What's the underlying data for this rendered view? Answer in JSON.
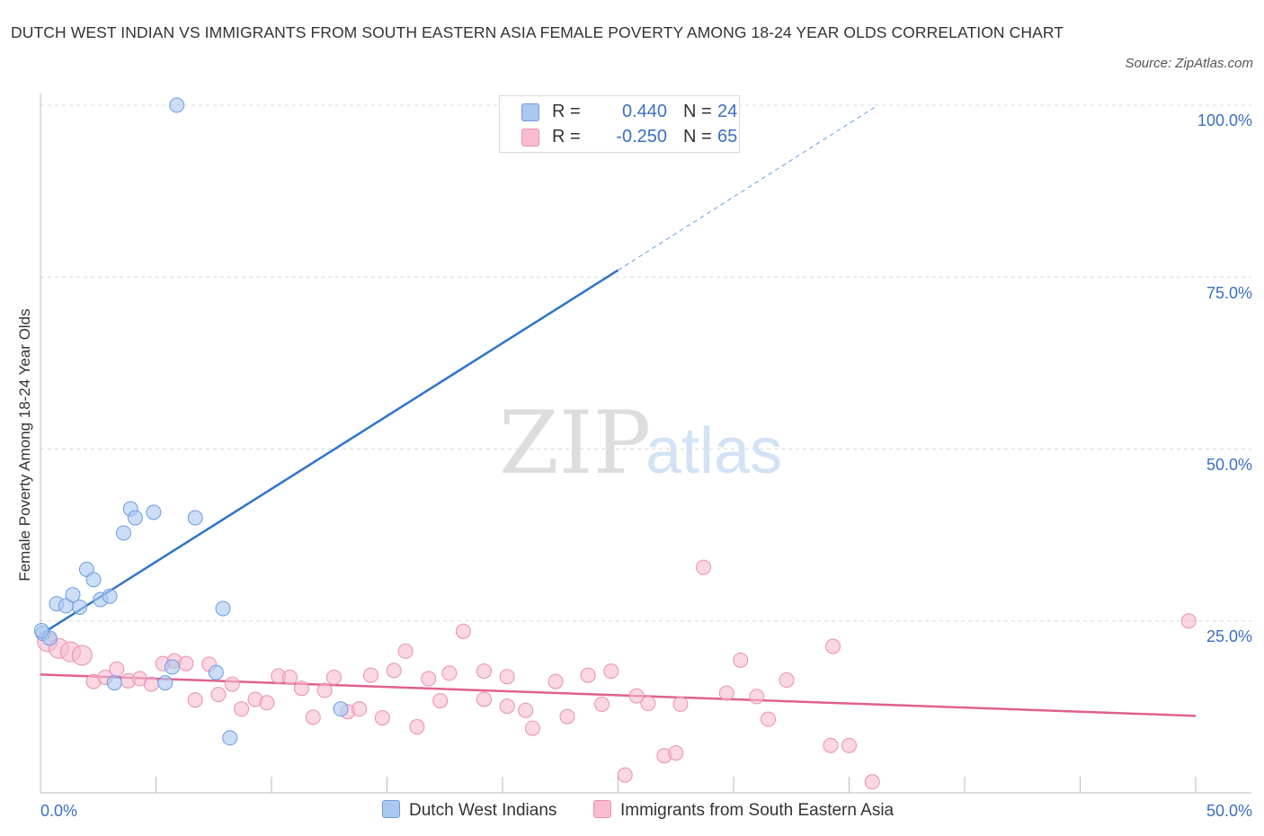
{
  "title": "DUTCH WEST INDIAN VS IMMIGRANTS FROM SOUTH EASTERN ASIA FEMALE POVERTY AMONG 18-24 YEAR OLDS CORRELATION CHART",
  "source": "Source: ZipAtlas.com",
  "watermark": {
    "zip": "ZIP",
    "atlas": "atlas"
  },
  "legend": {
    "rows": [
      {
        "r_label": "R =",
        "r_value": "0.440",
        "n_label": "N =",
        "n_value": "24",
        "color": "#aac8f0"
      },
      {
        "r_label": "R =",
        "r_value": "-0.250",
        "n_label": "N =",
        "n_value": "65",
        "color": "#f7bcd0"
      }
    ]
  },
  "bottom_legend": [
    "Dutch West Indians",
    "Immigrants from South Eastern Asia"
  ],
  "colors": {
    "blue_fill": "#aac8f0",
    "blue_stroke": "#6c9de0",
    "blue_line": "#2f74cc",
    "pink_fill": "#f7bcd0",
    "pink_stroke": "#ea8fb0",
    "pink_line": "#e0608e",
    "axis_text": "#3b6fc4"
  },
  "chart_data": {
    "type": "scatter",
    "title": "DUTCH WEST INDIAN VS IMMIGRANTS FROM SOUTH EASTERN ASIA FEMALE POVERTY AMONG 18-24 YEAR OLDS CORRELATION CHART",
    "xlabel": "",
    "ylabel": "Female Poverty Among 18-24 Year Olds",
    "xlim": [
      0,
      50
    ],
    "ylim": [
      0,
      100
    ],
    "x_tick_labels": [
      "0.0%",
      "50.0%"
    ],
    "y_tick_labels": [
      "100.0%",
      "75.0%",
      "50.0%",
      "25.0%"
    ],
    "y_ticks": [
      100,
      75,
      50,
      25
    ],
    "grid": true,
    "series": [
      {
        "name": "Dutch West Indians",
        "trend": {
          "x0": 0,
          "y0": 23.0,
          "x1": 25,
          "y1": 76.0,
          "dashed_to_x": 36.2,
          "dashed_to_y": 99.9
        },
        "points": [
          {
            "x": 0.1,
            "y": 23.2
          },
          {
            "x": 0.4,
            "y": 22.5
          },
          {
            "x": 0.7,
            "y": 27.5
          },
          {
            "x": 1.1,
            "y": 27.2
          },
          {
            "x": 1.4,
            "y": 28.8
          },
          {
            "x": 1.7,
            "y": 27.0
          },
          {
            "x": 2.0,
            "y": 32.5
          },
          {
            "x": 2.3,
            "y": 31.0
          },
          {
            "x": 2.6,
            "y": 28.1
          },
          {
            "x": 3.0,
            "y": 28.6
          },
          {
            "x": 3.2,
            "y": 16.0
          },
          {
            "x": 3.6,
            "y": 37.8
          },
          {
            "x": 3.9,
            "y": 41.3
          },
          {
            "x": 4.1,
            "y": 40.0
          },
          {
            "x": 4.9,
            "y": 40.8
          },
          {
            "x": 5.4,
            "y": 16.0
          },
          {
            "x": 5.7,
            "y": 18.3
          },
          {
            "x": 5.9,
            "y": 100.0
          },
          {
            "x": 6.7,
            "y": 40.0
          },
          {
            "x": 7.6,
            "y": 17.5
          },
          {
            "x": 7.9,
            "y": 26.8
          },
          {
            "x": 8.2,
            "y": 8.0
          },
          {
            "x": 13.0,
            "y": 12.2
          },
          {
            "x": 0.05,
            "y": 23.6
          }
        ]
      },
      {
        "name": "Immigrants from South Eastern Asia",
        "trend": {
          "x0": 0,
          "y0": 17.2,
          "x1": 50,
          "y1": 11.2
        },
        "points": [
          {
            "x": 0.3,
            "y": 22.0
          },
          {
            "x": 0.8,
            "y": 21.0
          },
          {
            "x": 1.3,
            "y": 20.5
          },
          {
            "x": 1.8,
            "y": 20.0
          },
          {
            "x": 2.3,
            "y": 16.2
          },
          {
            "x": 2.8,
            "y": 16.8
          },
          {
            "x": 3.3,
            "y": 18.0
          },
          {
            "x": 3.8,
            "y": 16.3
          },
          {
            "x": 4.3,
            "y": 16.6
          },
          {
            "x": 4.8,
            "y": 15.8
          },
          {
            "x": 5.3,
            "y": 18.8
          },
          {
            "x": 5.8,
            "y": 19.2
          },
          {
            "x": 6.3,
            "y": 18.8
          },
          {
            "x": 6.7,
            "y": 13.5
          },
          {
            "x": 7.3,
            "y": 18.7
          },
          {
            "x": 7.7,
            "y": 14.3
          },
          {
            "x": 8.3,
            "y": 15.8
          },
          {
            "x": 8.7,
            "y": 12.2
          },
          {
            "x": 9.3,
            "y": 13.6
          },
          {
            "x": 9.8,
            "y": 13.1
          },
          {
            "x": 10.3,
            "y": 17.0
          },
          {
            "x": 10.8,
            "y": 16.8
          },
          {
            "x": 11.3,
            "y": 15.2
          },
          {
            "x": 11.8,
            "y": 11.0
          },
          {
            "x": 12.3,
            "y": 14.9
          },
          {
            "x": 12.7,
            "y": 16.8
          },
          {
            "x": 13.3,
            "y": 11.8
          },
          {
            "x": 13.8,
            "y": 12.2
          },
          {
            "x": 14.3,
            "y": 17.1
          },
          {
            "x": 14.8,
            "y": 10.9
          },
          {
            "x": 15.3,
            "y": 17.8
          },
          {
            "x": 15.8,
            "y": 20.6
          },
          {
            "x": 16.3,
            "y": 9.6
          },
          {
            "x": 16.8,
            "y": 16.6
          },
          {
            "x": 17.3,
            "y": 13.4
          },
          {
            "x": 17.7,
            "y": 17.4
          },
          {
            "x": 18.3,
            "y": 23.5
          },
          {
            "x": 19.2,
            "y": 17.7
          },
          {
            "x": 19.2,
            "y": 13.6
          },
          {
            "x": 20.2,
            "y": 12.6
          },
          {
            "x": 20.2,
            "y": 16.9
          },
          {
            "x": 21.0,
            "y": 12.0
          },
          {
            "x": 21.3,
            "y": 9.4
          },
          {
            "x": 22.3,
            "y": 16.2
          },
          {
            "x": 22.8,
            "y": 11.1
          },
          {
            "x": 23.7,
            "y": 17.1
          },
          {
            "x": 24.3,
            "y": 12.9
          },
          {
            "x": 24.7,
            "y": 17.7
          },
          {
            "x": 25.3,
            "y": 2.6
          },
          {
            "x": 25.8,
            "y": 14.1
          },
          {
            "x": 26.3,
            "y": 13.0
          },
          {
            "x": 27.0,
            "y": 5.4
          },
          {
            "x": 27.5,
            "y": 5.8
          },
          {
            "x": 27.7,
            "y": 12.9
          },
          {
            "x": 28.7,
            "y": 32.8
          },
          {
            "x": 29.7,
            "y": 14.5
          },
          {
            "x": 30.3,
            "y": 19.3
          },
          {
            "x": 31.0,
            "y": 14.0
          },
          {
            "x": 31.5,
            "y": 10.7
          },
          {
            "x": 32.3,
            "y": 16.4
          },
          {
            "x": 34.2,
            "y": 6.9
          },
          {
            "x": 34.3,
            "y": 21.3
          },
          {
            "x": 35.0,
            "y": 6.9
          },
          {
            "x": 36.0,
            "y": 1.6
          },
          {
            "x": 49.7,
            "y": 25.0
          }
        ]
      }
    ]
  }
}
